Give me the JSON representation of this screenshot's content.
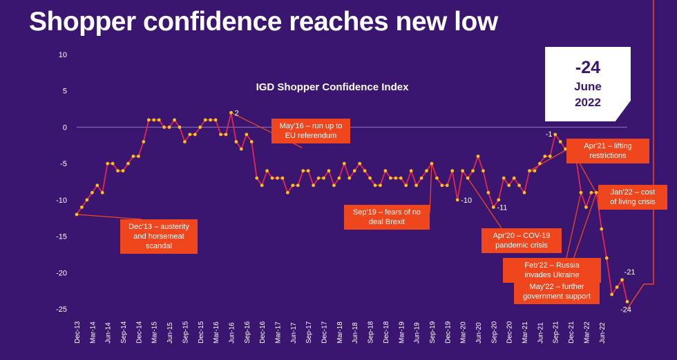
{
  "title": "Shopper confidence reaches new low",
  "chart_data": {
    "type": "line",
    "subtitle": "IGD Shopper Confidence Index",
    "ylim": [
      -25,
      10
    ],
    "y_ticks": [
      "10",
      "5",
      "0",
      "-5",
      "-10",
      "-15",
      "-20",
      "-25"
    ],
    "x_tick_labels": [
      "Dec-13",
      "Mar-14",
      "Jun-14",
      "Sep-14",
      "Dec-14",
      "Mar-15",
      "Jun-15",
      "Sep-15",
      "Dec-15",
      "Mar-16",
      "Jun-16",
      "Sep-16",
      "Dec-16",
      "Mar-17",
      "Jun-17",
      "Sep-17",
      "Dec-17",
      "Mar-18",
      "Jun-18",
      "Sep-18",
      "Dec-18",
      "Mar-19",
      "Jun-19",
      "Sep-19",
      "Dec-19",
      "Mar-20",
      "Jun-20",
      "Sep-20",
      "Dec-20",
      "Mar-21",
      "Jun-21",
      "Sep-21",
      "Dec-21",
      "Mar-22",
      "Jun-22"
    ],
    "x_start": "Dec-13",
    "x_end": "Jun-22",
    "series": [
      {
        "color": "#e8254d",
        "marker_color": "#f7c21a",
        "values": [
          -12,
          -11,
          -10,
          -9,
          -8,
          -9,
          -5,
          -5,
          -6,
          -6,
          -5,
          -4,
          -4,
          -2,
          1,
          1,
          1,
          0,
          0,
          1,
          0,
          -2,
          -1,
          -1,
          0,
          1,
          1,
          1,
          -1,
          -1,
          2,
          -2,
          -3,
          -1,
          -2,
          -7,
          -8,
          -6,
          -7,
          -7,
          -7,
          -9,
          -8,
          -8,
          -6,
          -6,
          -8,
          -7,
          -7,
          -6,
          -8,
          -7,
          -5,
          -7,
          -6,
          -5,
          -6,
          -7,
          -8,
          -8,
          -6,
          -7,
          -7,
          -7,
          -8,
          -6,
          -8,
          -7,
          -6,
          -5,
          -7,
          -8,
          -8,
          -6,
          -10,
          -6,
          -7,
          -6,
          -4,
          -6,
          -9,
          -11,
          -10,
          -7,
          -8,
          -7,
          -8,
          -9,
          -6,
          -6,
          -5,
          -4,
          -4,
          -1,
          -2,
          -3,
          -3,
          -4,
          -9,
          -11,
          -9,
          -9,
          -14,
          -18,
          -23,
          -22,
          -21,
          -24
        ]
      }
    ],
    "point_labels": [
      {
        "index": 30,
        "text": "2"
      },
      {
        "index": 74,
        "text": "-10"
      },
      {
        "index": 81,
        "text": "-11"
      },
      {
        "index": 93,
        "text": "-1"
      },
      {
        "index": 106,
        "text": "-21"
      },
      {
        "index": 107,
        "text": "-24"
      }
    ],
    "annotations": [
      {
        "lines": [
          "Dec'13 – austerity",
          "and horsemeat",
          "scandal"
        ],
        "index": 0
      },
      {
        "lines": [
          "May'16 – run up to",
          "EU referendum"
        ],
        "index": 30
      },
      {
        "lines": [
          "Sep'19 – fears of no",
          "deal Brexit"
        ],
        "index": 69
      },
      {
        "lines": [
          "Apr'20 – COV-19",
          "pandemic crisis"
        ],
        "index": 76
      },
      {
        "lines": [
          "Apr'21 – lifting",
          "restrictions"
        ],
        "index": 88
      },
      {
        "lines": [
          "Jan'22 – cost",
          "of living crisis"
        ],
        "index": 97
      },
      {
        "lines": [
          "Feb'22 – Russia",
          "invades Ukraine"
        ],
        "index": 98
      },
      {
        "lines": [
          "May'22 – further",
          "government support"
        ],
        "index": 101
      }
    ],
    "callout": {
      "value": "-24",
      "line1": "June",
      "line2": "2022"
    },
    "grid": false,
    "legend": "none"
  }
}
